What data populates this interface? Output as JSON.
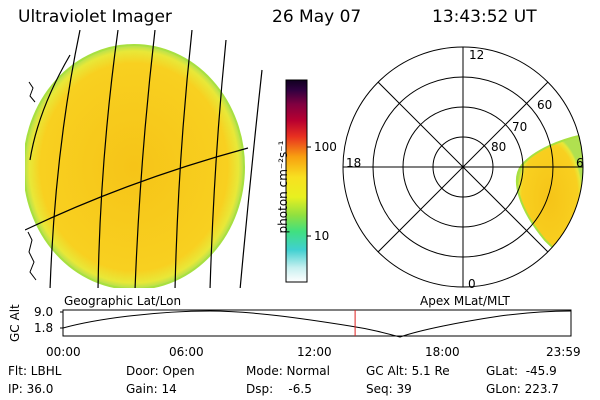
{
  "header": {
    "instrument": "Ultraviolet Imager",
    "date": "26 May 07",
    "time": "13:43:52 UT"
  },
  "left_panel": {
    "caption": "Geographic Lat/Lon"
  },
  "colorbar": {
    "unit_label": "photon cm⁻²s⁻¹",
    "tick_100": "100",
    "tick_10": "10"
  },
  "right_panel": {
    "caption": "Apex MLat/MLT",
    "mlt_12": "12",
    "mlt_18": "18",
    "mlt_6": "6",
    "mlt_0": "0",
    "lat_60": "60",
    "lat_70": "70",
    "lat_80": "80"
  },
  "altitude_plot": {
    "ylabel": "GC Alt",
    "ytick_top": "9.0",
    "ytick_bottom": "1.8",
    "xticks": [
      "00:00",
      "06:00",
      "12:00",
      "18:00",
      "23:59"
    ],
    "current_time_fraction": 0.575
  },
  "info": {
    "flt": "Flt: LBHL",
    "ip": "IP: 36.0",
    "door": "Door: Open",
    "gain": "Gain: 14",
    "mode": "Mode: Normal",
    "dsp": "Dsp:    -6.5",
    "gcalt": "GC Alt: 5.1 Re",
    "seq": "Seq: 39",
    "glat": "GLat:  -45.9",
    "glon": "GLon: 223.7"
  },
  "colors": {
    "disk_fill": "#f7c818",
    "disk_edge": "#a8e040",
    "marker": "#e02020"
  }
}
